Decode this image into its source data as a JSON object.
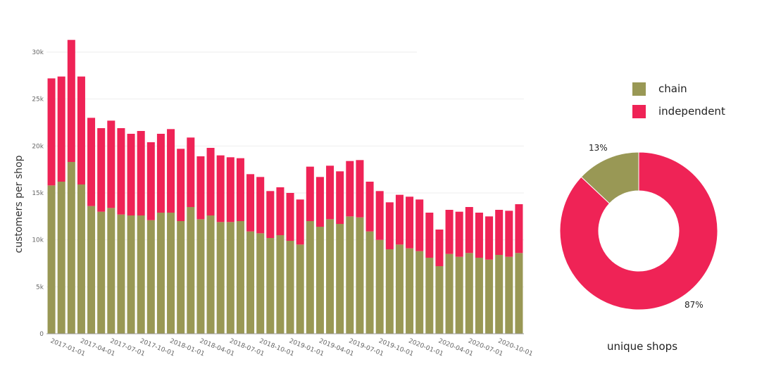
{
  "bar_chart": {
    "ylabel": "customers per shop",
    "series_colors": {
      "chain": "#999855",
      "independent": "#ef2356"
    },
    "ytick_labels": [
      "0",
      "5k",
      "10k",
      "15k",
      "20k",
      "25k",
      "30k"
    ],
    "xtick_labels": [
      "2017-01-01",
      "2017-04-01",
      "2017-07-01",
      "2017-10-01",
      "2018-01-01",
      "2018-04-01",
      "2018-07-01",
      "2018-10-01",
      "2019-01-01",
      "2019-04-01",
      "2019-07-01",
      "2019-10-01",
      "2020-01-01",
      "2020-04-01",
      "2020-07-01",
      "2020-10-01"
    ]
  },
  "donut_chart": {
    "legend": [
      {
        "label": "chain",
        "color": "#999855"
      },
      {
        "label": "independent",
        "color": "#ef2356"
      }
    ],
    "chain_pct_label": "13%",
    "independent_pct_label": "87%",
    "caption": "unique shops"
  },
  "chart_data": [
    {
      "type": "bar",
      "stacked": true,
      "ylabel": "customers per shop",
      "ylim": [
        0,
        32000
      ],
      "grid": true,
      "x": [
        "2017-01",
        "2017-02",
        "2017-03",
        "2017-04",
        "2017-05",
        "2017-06",
        "2017-07",
        "2017-08",
        "2017-09",
        "2017-10",
        "2017-11",
        "2017-12",
        "2018-01",
        "2018-02",
        "2018-03",
        "2018-04",
        "2018-05",
        "2018-06",
        "2018-07",
        "2018-08",
        "2018-09",
        "2018-10",
        "2018-11",
        "2018-12",
        "2019-01",
        "2019-02",
        "2019-03",
        "2019-04",
        "2019-05",
        "2019-06",
        "2019-07",
        "2019-08",
        "2019-09",
        "2019-10",
        "2019-11",
        "2019-12",
        "2020-01",
        "2020-02",
        "2020-03",
        "2020-04",
        "2020-05",
        "2020-06",
        "2020-07",
        "2020-08",
        "2020-09",
        "2020-10",
        "2020-11",
        "2020-12"
      ],
      "series": [
        {
          "name": "chain",
          "color": "#999855",
          "values": [
            15800,
            16200,
            18300,
            15900,
            13600,
            13000,
            13400,
            12700,
            12600,
            12600,
            12100,
            12900,
            12900,
            12000,
            13500,
            12200,
            12600,
            11900,
            11900,
            12000,
            10900,
            10700,
            10200,
            10500,
            9900,
            9500,
            12000,
            11400,
            12200,
            11700,
            12500,
            12400,
            10900,
            10000,
            9000,
            9500,
            9100,
            8800,
            8100,
            7200,
            8500,
            8200,
            8600,
            8100,
            7900,
            8400,
            8200,
            8600
          ]
        },
        {
          "name": "independent",
          "color": "#ef2356",
          "values": [
            11400,
            11200,
            13000,
            11500,
            9400,
            8900,
            9300,
            9200,
            8700,
            9000,
            8300,
            8400,
            8900,
            7700,
            7400,
            6700,
            7200,
            7100,
            6900,
            6700,
            6100,
            6000,
            5000,
            5100,
            5100,
            4800,
            5800,
            5300,
            5700,
            5600,
            5900,
            6100,
            5300,
            5200,
            5000,
            5300,
            5500,
            5500,
            4800,
            3900,
            4700,
            4800,
            4900,
            4800,
            4600,
            4800,
            4900,
            5200
          ]
        }
      ]
    },
    {
      "type": "pie",
      "hole": true,
      "caption": "unique shops",
      "slices": [
        {
          "label": "chain",
          "value": 13,
          "color": "#999855"
        },
        {
          "label": "independent",
          "value": 87,
          "color": "#ef2356"
        }
      ]
    }
  ]
}
